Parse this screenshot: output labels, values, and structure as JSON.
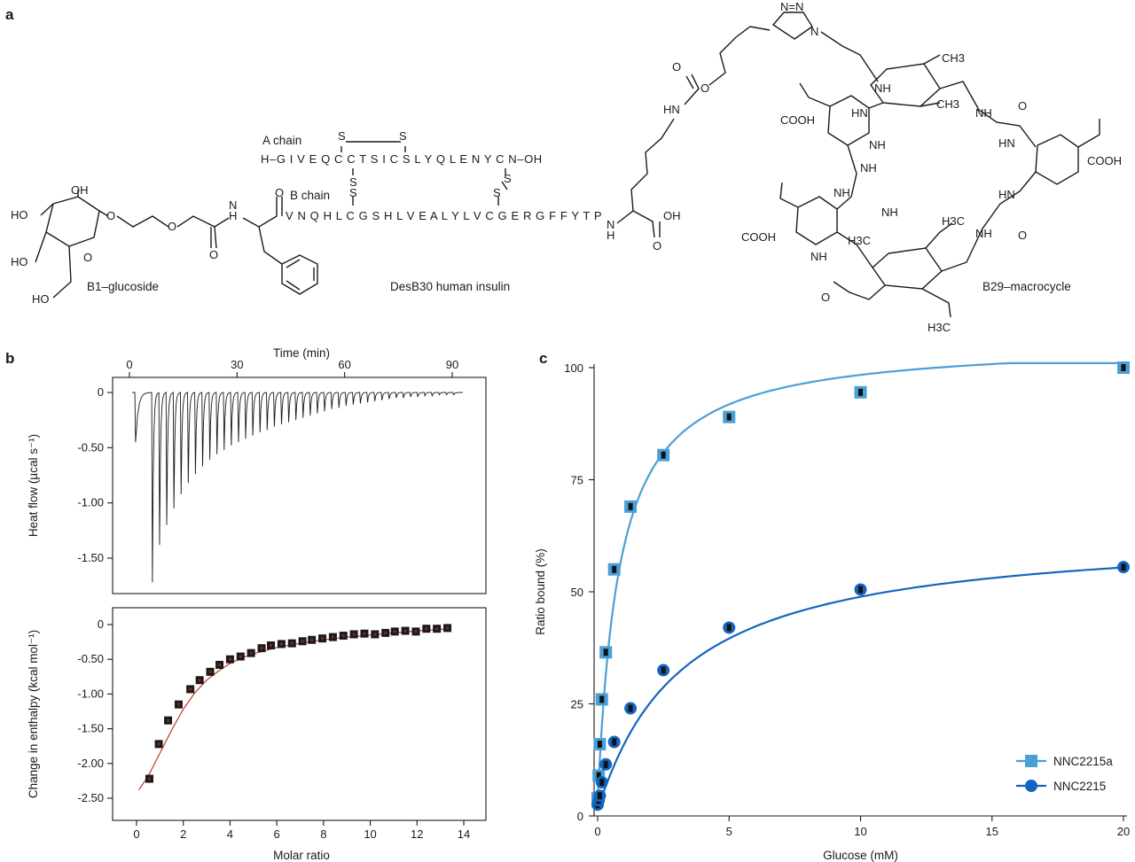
{
  "panels": {
    "a": "a",
    "b": "b",
    "c": "c"
  },
  "structure": {
    "a_chain_label": "A chain",
    "b_chain_label": "B chain",
    "a_chain_seq": "H–G I V E Q C C T S  I C S L Y Q L E N Y C N–OH",
    "b_chain_seq": "V N Q H L C G S H L V E A L Y L V C  G E R G F F Y T P",
    "glucoside_label": "B1–glucoside",
    "insulin_label": "DesB30 human insulin",
    "macrocycle_label": "B29–macrocycle",
    "atoms": {
      "s": "S",
      "o": "O",
      "oh": "OH",
      "ho": "HO",
      "hn": "HN",
      "nh": "NH",
      "n": "N",
      "h": "H",
      "cooh": "COOH",
      "ch3": "CH3",
      "h3c": "H3C",
      "triazole": "N=N"
    }
  },
  "panel_b": {
    "top": {
      "x_label_top": "Time (min)",
      "y_label": "Heat flow (µcal s⁻¹)",
      "x_ticks_top": [
        "0",
        "30",
        "60",
        "90"
      ],
      "y_ticks": [
        "0",
        "-0.50",
        "-1.00",
        "-1.50"
      ],
      "peak_color": "#1a1a1a"
    },
    "bottom": {
      "x_label": "Molar ratio",
      "y_label": "Change in enthalpy (kcal mol⁻¹)",
      "x_ticks": [
        "0",
        "2",
        "4",
        "6",
        "8",
        "10",
        "12",
        "14"
      ],
      "y_ticks": [
        "0",
        "-0.50",
        "-1.00",
        "-1.50",
        "-2.00",
        "-2.50"
      ],
      "fit_color": "#c0392b",
      "point_color": "#1a1a1a"
    }
  },
  "chart_data": [
    {
      "type": "line",
      "panel": "b-top",
      "x_label": "Time (min)",
      "y_label": "Heat flow (µcal s⁻¹)",
      "xlim": [
        0,
        95
      ],
      "ylim": [
        -1.85,
        0.1
      ],
      "series": [
        {
          "injection_time_min": [
            1.5,
            6.2,
            8.2,
            10.2,
            12.2,
            14.2,
            16.2,
            18.2,
            20.2,
            22.2,
            24.2,
            26.2,
            28.2,
            30.2,
            32.2,
            34.2,
            36.2,
            38.2,
            40.2,
            42.2,
            44.2,
            46.2,
            48.2,
            50.2,
            52.2,
            54.2,
            56.2,
            58.2,
            60.2,
            62.2,
            64.2,
            66.2,
            68.2,
            70.2,
            72.2,
            74.2,
            76.2,
            78.2,
            80.2,
            82.2,
            84.2,
            86.2,
            88.2,
            90.2
          ],
          "peak_heat_flow": [
            -0.45,
            -1.72,
            -1.38,
            -1.2,
            -1.05,
            -0.92,
            -0.82,
            -0.74,
            -0.67,
            -0.61,
            -0.56,
            -0.52,
            -0.48,
            -0.45,
            -0.42,
            -0.39,
            -0.36,
            -0.34,
            -0.31,
            -0.29,
            -0.27,
            -0.25,
            -0.23,
            -0.21,
            -0.19,
            -0.17,
            -0.15,
            -0.14,
            -0.12,
            -0.11,
            -0.1,
            -0.09,
            -0.08,
            -0.07,
            -0.06,
            -0.05,
            -0.05,
            -0.04,
            -0.04,
            -0.03,
            -0.03,
            -0.02,
            -0.02,
            -0.02
          ]
        }
      ]
    },
    {
      "type": "scatter",
      "panel": "b-bottom",
      "x_label": "Molar ratio",
      "y_label": "Change in enthalpy (kcal mol⁻¹)",
      "xlim": [
        -1,
        15
      ],
      "ylim": [
        -2.75,
        0.15
      ],
      "x": [
        0.55,
        0.95,
        1.35,
        1.8,
        2.3,
        2.7,
        3.15,
        3.55,
        4.0,
        4.45,
        4.9,
        5.35,
        5.75,
        6.2,
        6.65,
        7.1,
        7.5,
        7.95,
        8.4,
        8.85,
        9.3,
        9.75,
        10.2,
        10.65,
        11.05,
        11.5,
        11.95,
        12.4,
        12.85,
        13.3
      ],
      "y": [
        -2.22,
        -1.72,
        -1.38,
        -1.15,
        -0.93,
        -0.8,
        -0.68,
        -0.58,
        -0.5,
        -0.46,
        -0.41,
        -0.34,
        -0.3,
        -0.28,
        -0.27,
        -0.24,
        -0.22,
        -0.2,
        -0.18,
        -0.16,
        -0.14,
        -0.13,
        -0.14,
        -0.12,
        -0.1,
        -0.09,
        -0.1,
        -0.06,
        -0.06,
        -0.05
      ],
      "fit": {
        "x": [
          0.1,
          0.5,
          1.0,
          1.5,
          2.0,
          2.5,
          3.0,
          3.5,
          4.0,
          4.5,
          5.0,
          6.0,
          7.0,
          8.0,
          9.0,
          10.0,
          11.0,
          12.0,
          13.0,
          13.4
        ],
        "y": [
          -2.38,
          -2.18,
          -1.85,
          -1.52,
          -1.22,
          -0.98,
          -0.8,
          -0.67,
          -0.56,
          -0.48,
          -0.42,
          -0.33,
          -0.27,
          -0.22,
          -0.18,
          -0.15,
          -0.12,
          -0.09,
          -0.07,
          -0.06
        ]
      }
    },
    {
      "type": "scatter",
      "panel": "c",
      "x_label": "Glucose (mM)",
      "y_label": "Ratio bound (%)",
      "xlim": [
        0,
        20
      ],
      "ylim": [
        0,
        100
      ],
      "x_ticks": [
        "0",
        "5",
        "10",
        "15",
        "20"
      ],
      "y_ticks": [
        "0",
        "25",
        "50",
        "75",
        "100"
      ],
      "legend_position": "bottom-right",
      "series": [
        {
          "name": "NNC2215a",
          "color": "#4a9fd8",
          "marker": "square",
          "x": [
            0,
            0.04,
            0.08,
            0.16,
            0.31,
            0.63,
            1.25,
            2.5,
            5,
            10,
            20
          ],
          "y": [
            4,
            9,
            16,
            26,
            36.5,
            55,
            69,
            80.5,
            89,
            94.5,
            100
          ]
        },
        {
          "name": "NNC2215",
          "color": "#1565c0",
          "marker": "circle",
          "x": [
            0,
            0.04,
            0.08,
            0.16,
            0.31,
            0.63,
            1.25,
            2.5,
            5,
            10,
            20
          ],
          "y": [
            2.5,
            3.5,
            4.5,
            7.5,
            11.5,
            16.5,
            24,
            32.5,
            42,
            50.5,
            55.5
          ]
        }
      ]
    }
  ]
}
